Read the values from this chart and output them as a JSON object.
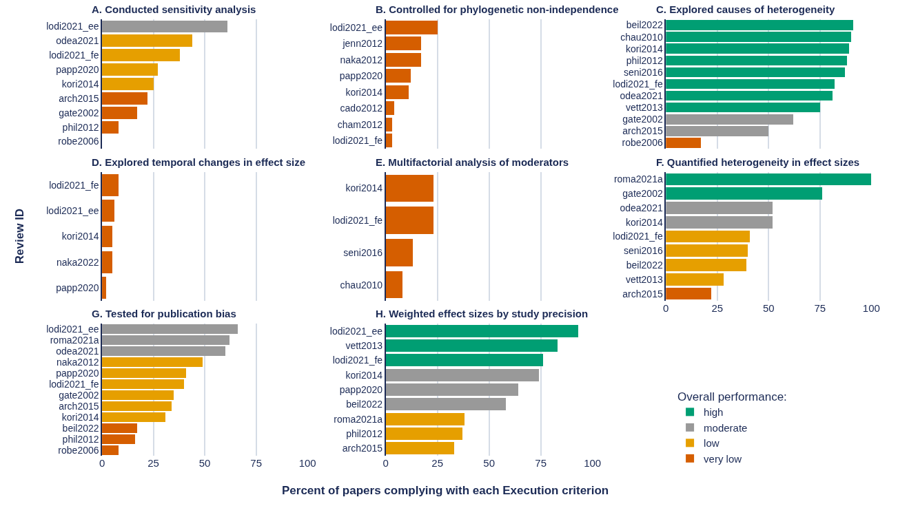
{
  "chart_data": [
    {
      "type": "bar",
      "orientation": "horizontal",
      "stacked": true,
      "title": "A. Conducted sensitivity analysis",
      "categories": [
        "lodi2021_ee",
        "odea2021",
        "lodi2021_fe",
        "papp2020",
        "kori2014",
        "arch2015",
        "gate2002",
        "phil2012",
        "robe2006"
      ],
      "xlim": [
        0,
        100
      ],
      "xticks": [
        0,
        25,
        50,
        75,
        100
      ],
      "grid": "x",
      "tick_labels": "y",
      "series": [
        {
          "color": "#999999",
          "values": [
            61,
            null,
            null,
            null,
            null,
            null,
            null,
            null,
            null
          ]
        },
        {
          "color": "#e69f00",
          "values": [
            null,
            44,
            38,
            27,
            25,
            null,
            null,
            null,
            null
          ]
        },
        {
          "color": "#d55e00",
          "values": [
            null,
            null,
            null,
            null,
            null,
            22,
            17,
            8,
            0
          ]
        }
      ]
    },
    {
      "type": "bar",
      "orientation": "horizontal",
      "stacked": true,
      "title": "B. Controlled for phylogenetic non-independence",
      "categories": [
        "lodi2021_ee",
        "jenn2012",
        "naka2012",
        "papp2020",
        "kori2014",
        "cado2012",
        "cham2012",
        "lodi2021_fe"
      ],
      "xlim": [
        0,
        100
      ],
      "xticks": [
        0,
        25,
        50,
        75,
        100
      ],
      "grid": "x",
      "tick_labels": "y",
      "series": [
        {
          "color": "#d55e00",
          "values": [
            25,
            17,
            17,
            12,
            11,
            4,
            3,
            3
          ]
        }
      ]
    },
    {
      "type": "bar",
      "orientation": "horizontal",
      "stacked": true,
      "title": "C. Explored causes of heterogeneity",
      "categories": [
        "beil2022",
        "chau2010",
        "kori2014",
        "phil2012",
        "seni2016",
        "lodi2021_fe",
        "odea2021",
        "vett2013",
        "gate2002",
        "arch2015",
        "robe2006"
      ],
      "xlim": [
        0,
        100
      ],
      "xticks": [
        0,
        25,
        50,
        75,
        100
      ],
      "grid": "x",
      "tick_labels": "y",
      "series": [
        {
          "color": "#009e73",
          "values": [
            91,
            90,
            89,
            88,
            87,
            82,
            81,
            75,
            null,
            null,
            null
          ]
        },
        {
          "color": "#999999",
          "values": [
            null,
            null,
            null,
            null,
            null,
            null,
            null,
            null,
            62,
            50,
            null
          ]
        },
        {
          "color": "#d55e00",
          "values": [
            null,
            null,
            null,
            null,
            null,
            null,
            null,
            null,
            null,
            null,
            17
          ]
        }
      ]
    },
    {
      "type": "bar",
      "orientation": "horizontal",
      "stacked": true,
      "title": "D. Explored temporal changes in effect size",
      "ylabel": "Review ID",
      "categories": [
        "lodi2021_fe",
        "lodi2021_ee",
        "kori2014",
        "naka2022",
        "papp2020"
      ],
      "xlim": [
        0,
        100
      ],
      "xticks": [
        0,
        25,
        50,
        75,
        100
      ],
      "grid": "x",
      "tick_labels": "y",
      "series": [
        {
          "color": "#d55e00",
          "values": [
            8,
            6,
            5,
            5,
            2
          ]
        }
      ]
    },
    {
      "type": "bar",
      "orientation": "horizontal",
      "stacked": true,
      "title": "E. Multifactorial analysis of moderators",
      "categories": [
        "kori2014",
        "lodi2021_fe",
        "seni2016",
        "chau2010"
      ],
      "xlim": [
        0,
        100
      ],
      "xticks": [
        0,
        25,
        50,
        75,
        100
      ],
      "grid": "x",
      "tick_labels": "y",
      "series": [
        {
          "color": "#d55e00",
          "values": [
            23,
            23,
            13,
            8
          ]
        }
      ]
    },
    {
      "type": "bar",
      "orientation": "horizontal",
      "stacked": true,
      "title": "F. Quantified heterogeneity in effect sizes",
      "categories": [
        "roma2021a",
        "gate2002",
        "odea2021",
        "kori2014",
        "lodi2021_fe",
        "seni2016",
        "beil2022",
        "vett2013",
        "arch2015"
      ],
      "xlim": [
        0,
        100
      ],
      "xticks": [
        0,
        25,
        50,
        75,
        100
      ],
      "grid": "x",
      "series": [
        {
          "color": "#009e73",
          "values": [
            100,
            76,
            null,
            null,
            null,
            null,
            null,
            null,
            null
          ]
        },
        {
          "color": "#999999",
          "values": [
            null,
            null,
            52,
            52,
            null,
            null,
            null,
            null,
            null
          ]
        },
        {
          "color": "#e69f00",
          "values": [
            null,
            null,
            null,
            null,
            41,
            40,
            39,
            28,
            null
          ]
        },
        {
          "color": "#d55e00",
          "values": [
            null,
            null,
            null,
            null,
            null,
            null,
            null,
            null,
            22
          ]
        }
      ]
    },
    {
      "type": "bar",
      "orientation": "horizontal",
      "stacked": true,
      "title": "G. Tested for publication bias",
      "categories": [
        "lodi2021_ee",
        "roma2021a",
        "odea2021",
        "naka2012",
        "papp2020",
        "lodi2021_fe",
        "gate2002",
        "arch2015",
        "kori2014",
        "beil2022",
        "phil2012",
        "robe2006"
      ],
      "xlim": [
        0,
        100
      ],
      "xticks": [
        0,
        25,
        50,
        75,
        100
      ],
      "grid": "x",
      "series": [
        {
          "color": "#999999",
          "values": [
            66,
            62,
            60,
            null,
            null,
            null,
            null,
            null,
            null,
            null,
            null,
            null
          ]
        },
        {
          "color": "#e69f00",
          "values": [
            null,
            null,
            null,
            49,
            41,
            40,
            35,
            34,
            31,
            null,
            null,
            null
          ]
        },
        {
          "color": "#d55e00",
          "values": [
            null,
            null,
            null,
            null,
            null,
            null,
            null,
            null,
            null,
            17,
            16,
            8
          ]
        }
      ]
    },
    {
      "type": "bar",
      "orientation": "horizontal",
      "stacked": true,
      "title": "H. Weighted effect sizes by study precision",
      "xlabel": "Percent of papers complying with each Execution criterion",
      "legend": "right",
      "legend_title": "Overall performance:",
      "categories": [
        "lodi2021_ee",
        "vett2013",
        "lodi2021_fe",
        "kori2014",
        "papp2020",
        "beil2022",
        "roma2021a",
        "phil2012",
        "arch2015"
      ],
      "xlim": [
        0,
        100
      ],
      "xticks": [
        0,
        25,
        50,
        75,
        100
      ],
      "grid": "x",
      "series": [
        {
          "name": "high",
          "color": "#009e73",
          "values": [
            93,
            83,
            76,
            null,
            null,
            null,
            null,
            null,
            null
          ]
        },
        {
          "name": "moderate",
          "color": "#999999",
          "values": [
            null,
            null,
            null,
            74,
            64,
            58,
            null,
            null,
            null
          ]
        },
        {
          "name": "low",
          "color": "#e69f00",
          "values": [
            null,
            null,
            null,
            null,
            null,
            null,
            38,
            37,
            33
          ]
        },
        {
          "name": "very low",
          "color": "#d55e00",
          "values": [
            null,
            null,
            null,
            null,
            null,
            null,
            null,
            null,
            null
          ]
        }
      ]
    }
  ]
}
